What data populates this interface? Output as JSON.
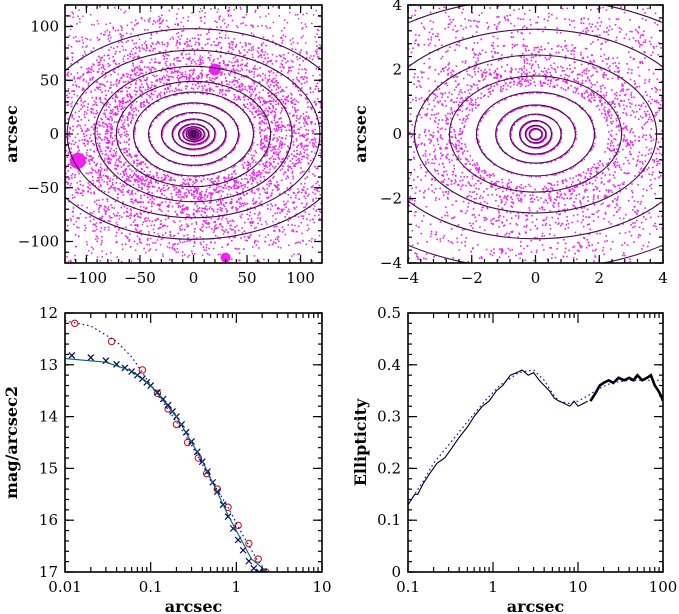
{
  "chart_data": [
    {
      "type": "contour",
      "panel": "top-left",
      "xlabel": "",
      "ylabel": "arcsec",
      "xlim": [
        -120,
        120
      ],
      "ylim": [
        -120,
        120
      ],
      "xticks": [
        -100,
        -50,
        0,
        50,
        100
      ],
      "yticks": [
        -100,
        -50,
        0,
        50,
        100
      ],
      "colors": {
        "data": "#ee22ee",
        "model": "#000000"
      },
      "model_isophotes": [
        {
          "a": 1.2,
          "b": 0.8
        },
        {
          "a": 2.2,
          "b": 1.5
        },
        {
          "a": 3.5,
          "b": 2.4
        },
        {
          "a": 5,
          "b": 3.5
        },
        {
          "a": 7,
          "b": 5
        },
        {
          "a": 10,
          "b": 6.8
        },
        {
          "a": 14,
          "b": 9.5
        },
        {
          "a": 20,
          "b": 14
        },
        {
          "a": 30,
          "b": 20
        },
        {
          "a": 42,
          "b": 29
        },
        {
          "a": 56,
          "b": 39
        },
        {
          "a": 72,
          "b": 49
        },
        {
          "a": 92,
          "b": 63
        },
        {
          "a": 118,
          "b": 78
        },
        {
          "a": 150,
          "b": 98
        }
      ]
    },
    {
      "type": "contour",
      "panel": "top-right",
      "xlabel": "",
      "ylabel": "arcsec",
      "xlim": [
        -4,
        4
      ],
      "ylim": [
        -4,
        4
      ],
      "xticks": [
        -4,
        -2,
        0,
        2,
        4
      ],
      "yticks": [
        -4,
        -2,
        0,
        2,
        4
      ],
      "colors": {
        "data": "#ee22ee",
        "model": "#000000"
      },
      "model_isophotes": [
        {
          "a": 0.2,
          "b": 0.17
        },
        {
          "a": 0.32,
          "b": 0.27
        },
        {
          "a": 0.5,
          "b": 0.42
        },
        {
          "a": 0.8,
          "b": 0.62
        },
        {
          "a": 1.25,
          "b": 0.9
        },
        {
          "a": 1.85,
          "b": 1.3
        },
        {
          "a": 2.7,
          "b": 1.8
        },
        {
          "a": 3.8,
          "b": 2.45
        },
        {
          "a": 5.2,
          "b": 3.25
        },
        {
          "a": 7.0,
          "b": 4.2
        }
      ]
    },
    {
      "type": "scatter",
      "panel": "bottom-left",
      "xlabel": "arcsec",
      "ylabel": "mag/arcsec2",
      "xscale": "log",
      "xlim": [
        0.01,
        10
      ],
      "ylim": [
        17,
        12
      ],
      "xticks": [
        "0.01",
        "0.1",
        "1",
        "10"
      ],
      "yticks": [
        12,
        13,
        14,
        15,
        16,
        17
      ],
      "series": [
        {
          "marker": "circle",
          "color": "#dd0000",
          "x": [
            0.013,
            0.035,
            0.08,
            0.12,
            0.16,
            0.2,
            0.27,
            0.36,
            0.45,
            0.6,
            0.8,
            1.05,
            1.4,
            1.8,
            2.2
          ],
          "y": [
            12.2,
            12.55,
            13.1,
            13.55,
            13.85,
            14.15,
            14.5,
            14.8,
            15.1,
            15.4,
            15.75,
            16.1,
            16.45,
            16.75,
            17.0
          ]
        },
        {
          "marker": "cross",
          "color": "#000066",
          "x": [
            0.012,
            0.02,
            0.03,
            0.04,
            0.05,
            0.06,
            0.07,
            0.08,
            0.09,
            0.1,
            0.12,
            0.14,
            0.16,
            0.18,
            0.2,
            0.23,
            0.26,
            0.3,
            0.35,
            0.4,
            0.46,
            0.53,
            0.6,
            0.7,
            0.8,
            0.92,
            1.05,
            1.2,
            1.4,
            1.6,
            1.85,
            2.1
          ],
          "y": [
            12.82,
            12.86,
            12.92,
            12.99,
            13.06,
            13.13,
            13.2,
            13.27,
            13.34,
            13.4,
            13.53,
            13.66,
            13.78,
            13.9,
            14.0,
            14.15,
            14.3,
            14.48,
            14.68,
            14.87,
            15.06,
            15.27,
            15.45,
            15.7,
            15.93,
            16.16,
            16.38,
            16.58,
            16.79,
            16.93,
            17.0,
            17.0
          ]
        },
        {
          "style": "dotted",
          "color": "#0000cc",
          "x": [
            0.01,
            0.02,
            0.04,
            0.06,
            0.08,
            0.1,
            0.15,
            0.2,
            0.3,
            0.5,
            0.8,
            1.2,
            1.8,
            2.3
          ],
          "y": [
            12.15,
            12.25,
            12.55,
            12.85,
            13.15,
            13.4,
            13.8,
            14.1,
            14.55,
            15.2,
            15.75,
            16.3,
            16.8,
            17.0
          ]
        },
        {
          "style": "solid",
          "color": "#006666",
          "x": [
            0.01,
            0.03,
            0.06,
            0.1,
            0.2,
            0.4,
            0.8,
            1.5,
            2.3
          ],
          "y": [
            12.88,
            12.95,
            13.12,
            13.4,
            14.0,
            14.85,
            15.9,
            16.75,
            17.0
          ]
        }
      ]
    },
    {
      "type": "line",
      "panel": "bottom-right",
      "xlabel": "arcsec",
      "ylabel": "Ellipticity",
      "xscale": "log",
      "xlim": [
        0.1,
        100
      ],
      "ylim": [
        0,
        0.5
      ],
      "xticks": [
        "0.1",
        "1",
        "10",
        "100"
      ],
      "yticks": [
        "0",
        "0.1",
        "0.2",
        "0.3",
        "0.4",
        "0.5"
      ],
      "series": [
        {
          "style": "solid",
          "color": "#000000",
          "x": [
            0.1,
            0.11,
            0.12,
            0.13,
            0.15,
            0.18,
            0.22,
            0.27,
            0.33,
            0.4,
            0.5,
            0.6,
            0.75,
            0.9,
            1.1,
            1.3,
            1.6,
            1.9,
            2.2,
            2.6,
            3.0,
            3.5,
            4.0,
            4.6,
            5.3,
            6.0,
            7.0,
            8.0,
            9.0,
            10.0,
            11.5,
            13.0
          ],
          "y": [
            0.13,
            0.14,
            0.15,
            0.15,
            0.17,
            0.19,
            0.21,
            0.22,
            0.24,
            0.26,
            0.28,
            0.3,
            0.32,
            0.33,
            0.35,
            0.36,
            0.38,
            0.385,
            0.39,
            0.38,
            0.385,
            0.37,
            0.36,
            0.35,
            0.335,
            0.33,
            0.325,
            0.32,
            0.33,
            0.32,
            0.325,
            0.33
          ]
        },
        {
          "style": "solid-thick",
          "color": "#000000",
          "x": [
            14,
            16,
            18,
            20,
            23,
            26,
            30,
            35,
            40,
            45,
            50,
            57,
            65,
            72,
            80,
            88,
            95,
            100
          ],
          "y": [
            0.33,
            0.345,
            0.36,
            0.365,
            0.37,
            0.365,
            0.375,
            0.37,
            0.375,
            0.37,
            0.38,
            0.37,
            0.375,
            0.38,
            0.36,
            0.35,
            0.34,
            0.33
          ]
        },
        {
          "style": "dotted",
          "color": "#0000cc",
          "x": [
            0.1,
            0.15,
            0.2,
            0.3,
            0.5,
            0.8,
            1.2,
            2.0,
            3.0,
            4.0,
            5.0,
            6.0,
            8.0,
            10.0,
            13.0,
            18.0,
            25.0,
            40.0,
            60.0,
            100.0
          ],
          "y": [
            0.13,
            0.175,
            0.21,
            0.245,
            0.29,
            0.33,
            0.36,
            0.385,
            0.39,
            0.37,
            0.345,
            0.33,
            0.325,
            0.33,
            0.34,
            0.355,
            0.365,
            0.37,
            0.37,
            0.37
          ]
        }
      ]
    }
  ]
}
